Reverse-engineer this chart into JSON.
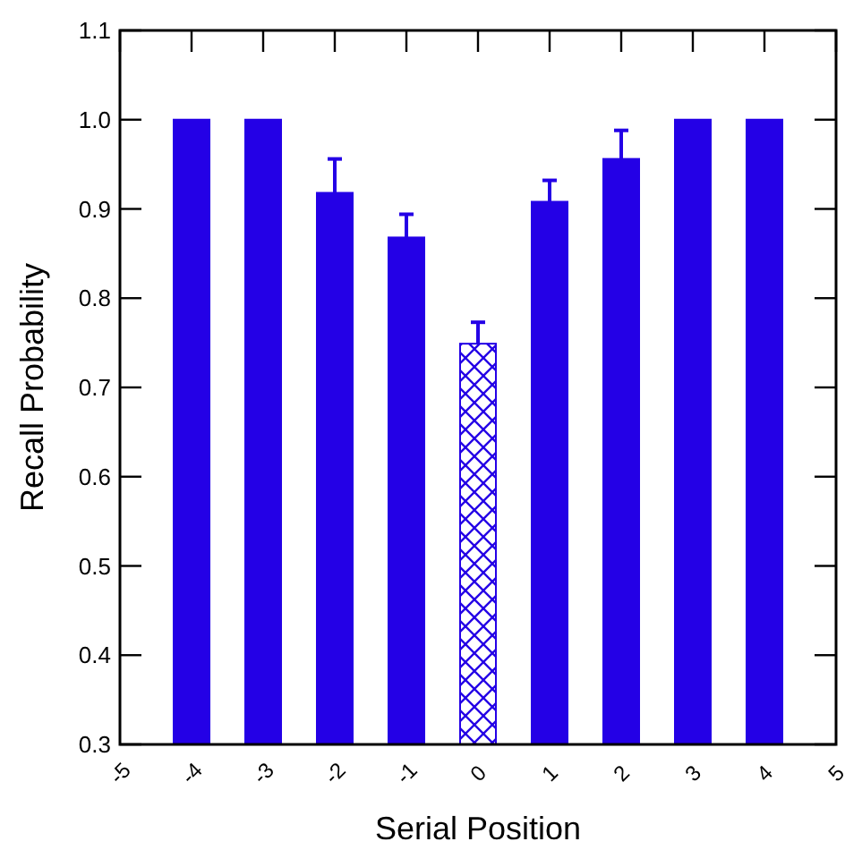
{
  "chart_data": {
    "type": "bar",
    "xlabel": "Serial Position",
    "ylabel": "Recall Probability",
    "x": [
      -4,
      -3,
      -2,
      -1,
      0,
      1,
      2,
      3,
      4
    ],
    "series": [
      {
        "color": "#2400e6",
        "values": [
          1.0,
          1.0,
          0.918,
          0.868,
          null,
          0.908,
          0.956,
          1.0,
          1.0
        ],
        "errors": [
          null,
          null,
          [
            0.918,
            0.956
          ],
          [
            0.868,
            0.894
          ],
          null,
          [
            0.908,
            0.932
          ],
          [
            0.956,
            0.988
          ],
          null,
          null
        ]
      },
      {
        "color": "#2400e6",
        "values": [
          null,
          null,
          null,
          null,
          0.749,
          null,
          null,
          null,
          null
        ],
        "errors": [
          null,
          null,
          null,
          null,
          [
            0.749,
            0.773
          ],
          null,
          null,
          null,
          null
        ]
      }
    ],
    "xlim": [
      -5,
      5
    ],
    "xticks": [
      -5,
      -4,
      -3,
      -2,
      -1,
      0,
      1,
      2,
      3,
      4,
      5
    ],
    "ylim": [
      0.3,
      1.1
    ],
    "yticks": [
      {
        "value": 0.3,
        "label": "0.3"
      },
      {
        "value": 0.4,
        "label": "0.4"
      },
      {
        "value": 0.5,
        "label": "0.5"
      },
      {
        "value": 0.6,
        "label": "0.6"
      },
      {
        "value": 0.7,
        "label": "0.7"
      },
      {
        "value": 0.8,
        "label": "0.8"
      },
      {
        "value": 0.9,
        "label": "0.9"
      },
      {
        "value": 1.0,
        "label": "1.0"
      },
      {
        "value": 1.1,
        "label": "1.1"
      }
    ]
  }
}
